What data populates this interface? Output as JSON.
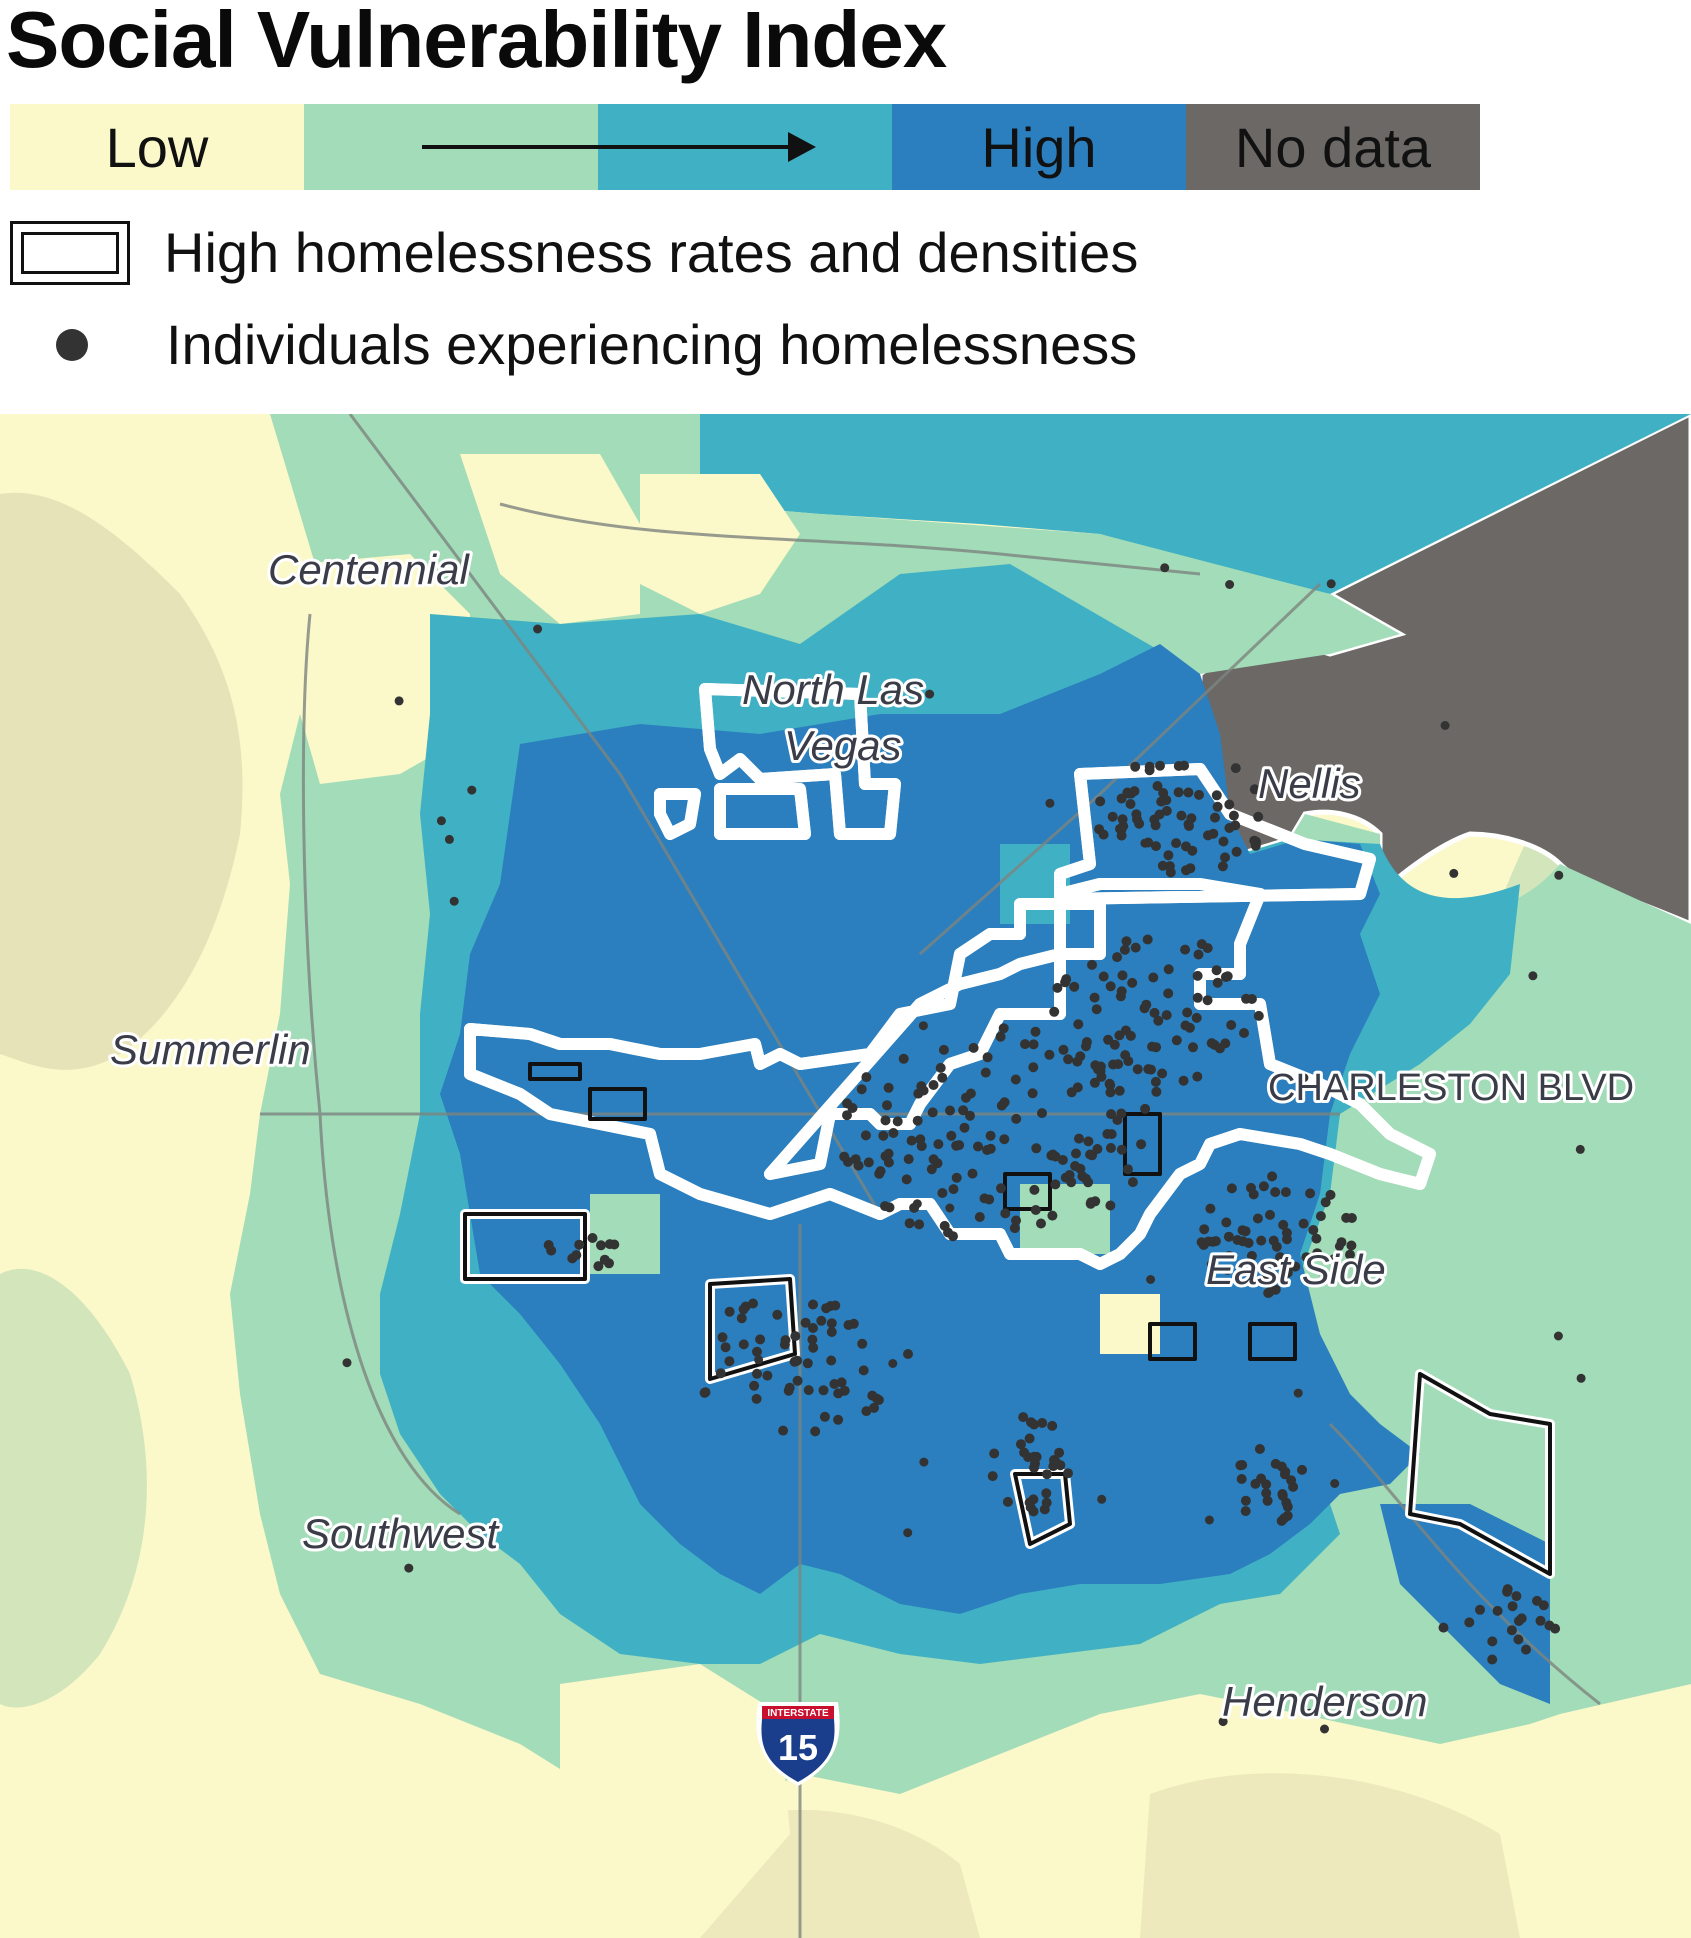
{
  "title": "Social Vulnerability Index",
  "scale": {
    "low_label": "Low",
    "high_label": "High",
    "nodata_label": "No data",
    "colors": [
      "#fbf8c9",
      "#a3dcb8",
      "#40b1c4",
      "#2b7fbe",
      "#6b6866"
    ]
  },
  "legend": {
    "outline_label": "High homelessness rates and densities",
    "dot_label": "Individuals experiencing homelessness"
  },
  "map": {
    "places": {
      "centennial": "Centennial",
      "north_las_vegas_1": "North Las",
      "north_las_vegas_2": "Vegas",
      "nellis": "Nellis",
      "summerlin": "Summerlin",
      "charleston": "CHARLESTON BLVD",
      "east_side": "East Side",
      "southwest": "Southwest",
      "henderson": "Henderson"
    },
    "shield": {
      "top_text": "INTERSTATE",
      "number": "15"
    }
  }
}
